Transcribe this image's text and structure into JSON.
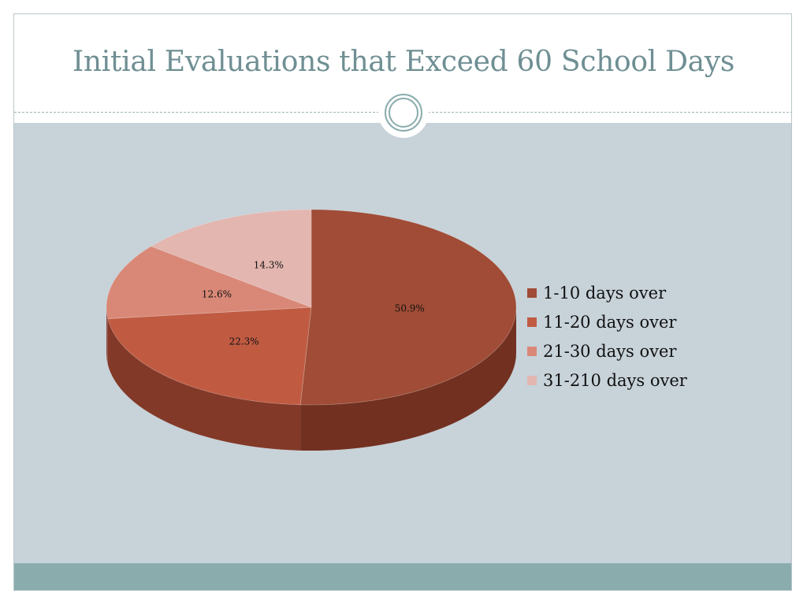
{
  "slide": {
    "title": "Initial Evaluations that Exceed 60 School Days"
  },
  "colors": {
    "title": "#6f8f93",
    "content_band": "#c7d2d9",
    "footer_band": "#8aacad"
  },
  "chart_data": {
    "type": "pie",
    "title": "",
    "categories": [
      "1-10 days over",
      "11-20 days over",
      "21-30 days over",
      "31-210 days over"
    ],
    "values": [
      50.9,
      22.3,
      12.6,
      14.3
    ],
    "labels": [
      "50.9%",
      "22.3%",
      "12.6%",
      "14.3%"
    ],
    "colors": [
      "#a04c36",
      "#c05b42",
      "#d98877",
      "#e3b6b0"
    ],
    "legend": "right",
    "style": "3d"
  }
}
